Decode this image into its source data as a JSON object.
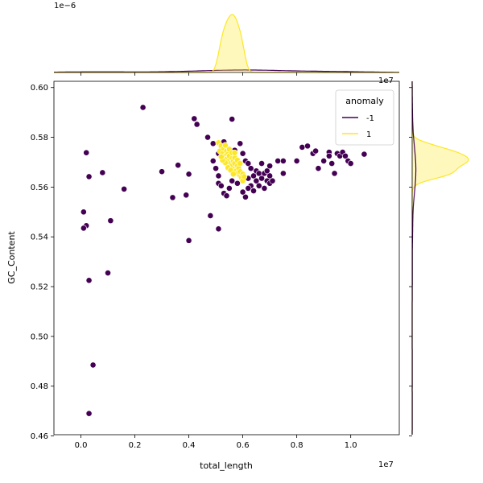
{
  "chart_data": {
    "type": "scatter",
    "xlabel": "total_length",
    "ylabel": "GC_Content",
    "x_offset_text": "1e7",
    "marginal_offset_text": "1e−6",
    "right_marginal_offset_text": "1e7",
    "xlim": [
      -0.1,
      1.18
    ],
    "ylim": [
      0.4605,
      0.6025
    ],
    "x_ticks": [
      0.0,
      0.2,
      0.4,
      0.6,
      0.8,
      1.0
    ],
    "x_tick_labels": [
      "0.0",
      "0.2",
      "0.4",
      "0.6",
      "0.8",
      "1.0"
    ],
    "y_ticks": [
      0.46,
      0.48,
      0.5,
      0.52,
      0.54,
      0.56,
      0.58,
      0.6
    ],
    "y_tick_labels": [
      "0.46",
      "0.48",
      "0.50",
      "0.52",
      "0.54",
      "0.56",
      "0.58",
      "0.60"
    ],
    "grid": false,
    "legend": {
      "title": "anomaly",
      "placement": "top-right"
    },
    "colors": {
      "neg": "#440154",
      "pos": "#fde725"
    },
    "series": [
      {
        "name": "-1",
        "color": "#440154",
        "points": [
          [
            0.23,
            0.592
          ],
          [
            0.42,
            0.5875
          ],
          [
            0.43,
            0.5852
          ],
          [
            0.56,
            0.5873
          ],
          [
            0.47,
            0.58
          ],
          [
            0.49,
            0.5775
          ],
          [
            0.53,
            0.5782
          ],
          [
            0.59,
            0.5775
          ],
          [
            0.51,
            0.5735
          ],
          [
            0.57,
            0.5748
          ],
          [
            0.6,
            0.5735
          ],
          [
            0.49,
            0.5705
          ],
          [
            0.5,
            0.5675
          ],
          [
            0.51,
            0.5645
          ],
          [
            0.51,
            0.5615
          ],
          [
            0.52,
            0.5605
          ],
          [
            0.53,
            0.5575
          ],
          [
            0.54,
            0.5565
          ],
          [
            0.55,
            0.5595
          ],
          [
            0.56,
            0.5625
          ],
          [
            0.58,
            0.5615
          ],
          [
            0.59,
            0.5655
          ],
          [
            0.6,
            0.5645
          ],
          [
            0.61,
            0.5705
          ],
          [
            0.62,
            0.5695
          ],
          [
            0.62,
            0.5635
          ],
          [
            0.63,
            0.5675
          ],
          [
            0.63,
            0.5605
          ],
          [
            0.64,
            0.5645
          ],
          [
            0.64,
            0.5585
          ],
          [
            0.65,
            0.5665
          ],
          [
            0.65,
            0.5625
          ],
          [
            0.66,
            0.5655
          ],
          [
            0.66,
            0.5605
          ],
          [
            0.67,
            0.5635
          ],
          [
            0.67,
            0.5695
          ],
          [
            0.68,
            0.5595
          ],
          [
            0.68,
            0.5655
          ],
          [
            0.69,
            0.5625
          ],
          [
            0.69,
            0.5665
          ],
          [
            0.7,
            0.5645
          ],
          [
            0.7,
            0.5615
          ],
          [
            0.7,
            0.5685
          ],
          [
            0.71,
            0.5625
          ],
          [
            0.61,
            0.556
          ],
          [
            0.62,
            0.5595
          ],
          [
            0.6,
            0.558
          ],
          [
            0.73,
            0.5705
          ],
          [
            0.75,
            0.5705
          ],
          [
            0.75,
            0.5655
          ],
          [
            0.8,
            0.5705
          ],
          [
            0.82,
            0.576
          ],
          [
            0.84,
            0.5765
          ],
          [
            0.86,
            0.5735
          ],
          [
            0.87,
            0.5745
          ],
          [
            0.88,
            0.5675
          ],
          [
            0.9,
            0.5705
          ],
          [
            0.92,
            0.574
          ],
          [
            0.92,
            0.5725
          ],
          [
            0.93,
            0.5695
          ],
          [
            0.94,
            0.5655
          ],
          [
            0.95,
            0.5735
          ],
          [
            0.96,
            0.5725
          ],
          [
            0.97,
            0.574
          ],
          [
            0.98,
            0.5725
          ],
          [
            0.99,
            0.5705
          ],
          [
            1.0,
            0.5695
          ],
          [
            1.05,
            0.5732
          ],
          [
            0.3,
            0.5662
          ],
          [
            0.36,
            0.5688
          ],
          [
            0.4,
            0.5652
          ],
          [
            0.39,
            0.5568
          ],
          [
            0.34,
            0.5558
          ],
          [
            0.02,
            0.5738
          ],
          [
            0.03,
            0.5642
          ],
          [
            0.08,
            0.5658
          ],
          [
            0.16,
            0.5592
          ],
          [
            0.01,
            0.55
          ],
          [
            0.02,
            0.5445
          ],
          [
            0.01,
            0.5435
          ],
          [
            0.11,
            0.5465
          ],
          [
            0.48,
            0.5485
          ],
          [
            0.51,
            0.5432
          ],
          [
            0.4,
            0.5385
          ],
          [
            0.1,
            0.5255
          ],
          [
            0.03,
            0.5225
          ],
          [
            0.045,
            0.4885
          ],
          [
            0.03,
            0.469
          ]
        ]
      },
      {
        "name": "1",
        "color": "#fde725",
        "points": [
          [
            0.51,
            0.5778
          ],
          [
            0.52,
            0.5765
          ],
          [
            0.515,
            0.5745
          ],
          [
            0.525,
            0.5735
          ],
          [
            0.53,
            0.5755
          ],
          [
            0.535,
            0.5725
          ],
          [
            0.54,
            0.5745
          ],
          [
            0.54,
            0.5712
          ],
          [
            0.545,
            0.5732
          ],
          [
            0.55,
            0.5705
          ],
          [
            0.55,
            0.5725
          ],
          [
            0.555,
            0.5695
          ],
          [
            0.56,
            0.5715
          ],
          [
            0.56,
            0.5685
          ],
          [
            0.565,
            0.5705
          ],
          [
            0.57,
            0.5672
          ],
          [
            0.57,
            0.5695
          ],
          [
            0.575,
            0.5665
          ],
          [
            0.58,
            0.5685
          ],
          [
            0.58,
            0.5655
          ],
          [
            0.585,
            0.5675
          ],
          [
            0.59,
            0.5645
          ],
          [
            0.59,
            0.5662
          ],
          [
            0.595,
            0.5638
          ],
          [
            0.6,
            0.5652
          ],
          [
            0.535,
            0.5698
          ],
          [
            0.545,
            0.5678
          ],
          [
            0.555,
            0.5668
          ],
          [
            0.565,
            0.5652
          ],
          [
            0.525,
            0.5708
          ],
          [
            0.52,
            0.5722
          ],
          [
            0.57,
            0.5718
          ],
          [
            0.58,
            0.5708
          ],
          [
            0.6,
            0.5625
          ],
          [
            0.55,
            0.5752
          ],
          [
            0.535,
            0.5768
          ],
          [
            0.56,
            0.5738
          ],
          [
            0.57,
            0.5738
          ],
          [
            0.59,
            0.5695
          ],
          [
            0.605,
            0.5642
          ]
        ]
      }
    ],
    "legend_entries": [
      {
        "label": "-1",
        "color": "#440154"
      },
      {
        "label": "1",
        "color": "#fde725"
      }
    ]
  }
}
